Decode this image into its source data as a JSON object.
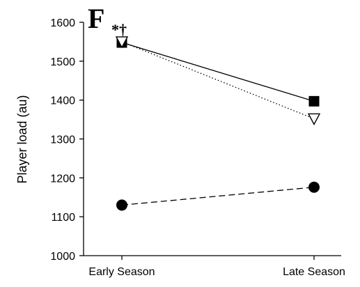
{
  "panel_label": "F",
  "annotation": "*†",
  "chart_data": {
    "type": "line",
    "ylabel": "Player load (au)",
    "xlabel": "",
    "categories": [
      "Early Season",
      "Late Season"
    ],
    "ylim": [
      1000,
      1600
    ],
    "yticks": [
      "1000",
      "1100",
      "1200",
      "1300",
      "1400",
      "1500",
      "1600"
    ],
    "grid": false,
    "series": [
      {
        "marker": "square-filled",
        "line_style": "solid",
        "values": [
          1548,
          1397
        ]
      },
      {
        "marker": "triangle-down-open",
        "line_style": "dotted",
        "values": [
          1550,
          1352
        ]
      },
      {
        "marker": "circle-filled",
        "line_style": "dashed",
        "values": [
          1130,
          1176
        ]
      }
    ]
  }
}
